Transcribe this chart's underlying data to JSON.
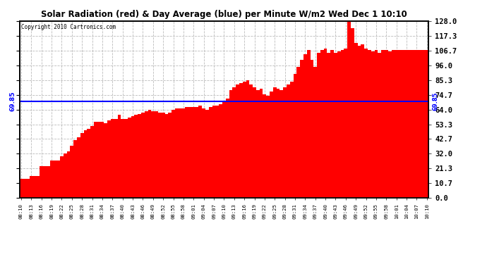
{
  "title": "Solar Radiation (red) & Day Average (blue) per Minute W/m2 Wed Dec 1 10:10",
  "copyright": "Copyright 2010 Cartronics.com",
  "avg_value": 69.85,
  "y_max": 128.0,
  "y_min": 0.0,
  "yticks": [
    0.0,
    10.7,
    21.3,
    32.0,
    42.7,
    53.3,
    64.0,
    74.7,
    85.3,
    96.0,
    106.7,
    117.3,
    128.0
  ],
  "bar_color": "#FF0000",
  "avg_line_color": "#0000FF",
  "background_color": "#FFFFFF",
  "grid_color": "#BBBBBB",
  "x_label_every": 3,
  "x_labels_shown": [
    "08:10",
    "08:13",
    "08:16",
    "08:19",
    "08:22",
    "08:25",
    "08:28",
    "08:31",
    "08:34",
    "08:37",
    "08:40",
    "08:43",
    "08:46",
    "08:49",
    "08:52",
    "08:55",
    "08:58",
    "09:01",
    "09:04",
    "09:07",
    "09:10",
    "09:13",
    "09:16",
    "09:19",
    "09:22",
    "09:25",
    "09:28",
    "09:31",
    "09:34",
    "09:37",
    "09:40",
    "09:43",
    "09:46",
    "09:49",
    "09:52",
    "09:55",
    "09:58",
    "10:01",
    "10:04",
    "10:07",
    "10:10"
  ],
  "bar_values": [
    14,
    14,
    14,
    16,
    16,
    16,
    23,
    23,
    23,
    27,
    27,
    27,
    30,
    32,
    34,
    38,
    42,
    44,
    47,
    49,
    50,
    52,
    55,
    55,
    55,
    54,
    56,
    57,
    57,
    60,
    57,
    57,
    58,
    59,
    60,
    61,
    62,
    63,
    64,
    63,
    63,
    62,
    62,
    61,
    62,
    64,
    65,
    65,
    65,
    66,
    66,
    66,
    66,
    67,
    65,
    64,
    66,
    67,
    67,
    68,
    70,
    72,
    78,
    80,
    82,
    83,
    84,
    85,
    82,
    80,
    78,
    79,
    75,
    74,
    77,
    80,
    79,
    78,
    80,
    82,
    84,
    90,
    95,
    100,
    104,
    107,
    100,
    95,
    105,
    107,
    108,
    105,
    107,
    105,
    106,
    107,
    108,
    128,
    123,
    112,
    110,
    111,
    108,
    107,
    106,
    107,
    105,
    107,
    107,
    106,
    107,
    107,
    107,
    107,
    107,
    107,
    107,
    107,
    107,
    107,
    107
  ]
}
